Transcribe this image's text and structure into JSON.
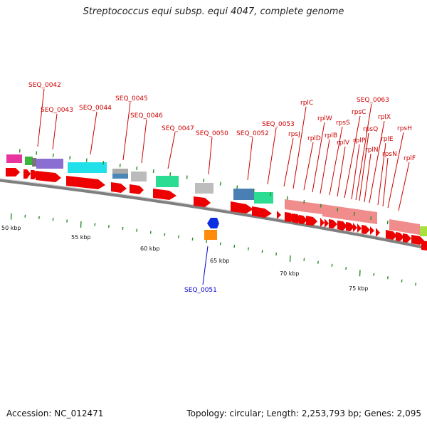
{
  "title": "Streptococcus equi subsp. equi 4047, complete genome",
  "accession": "Accession: NC_012471",
  "summary": "Topology: circular; Length: 2,253,793 bp; Genes: 2,095",
  "kbp_labels": [
    "50 kbp",
    "55 kbp",
    "60 kbp",
    "65 kbp",
    "70 kbp",
    "75 kbp"
  ],
  "gene_labels_forward": [
    "SEQ_0042",
    "SEQ_0043",
    "SEQ_0044",
    "SEQ_0045",
    "SEQ_0046",
    "SEQ_0047",
    "SEQ_0050",
    "SEQ_0052",
    "SEQ_0053",
    "rpsJ",
    "rplC",
    "rplD",
    "rplW",
    "rplB",
    "rpsS",
    "rplV",
    "rpsC",
    "rplP",
    "SEQ_0063",
    "rpsQ",
    "rplN",
    "rplX",
    "rplE",
    "rpsN",
    "rpsH",
    "rplF"
  ],
  "gene_labels_reverse": [
    "SEQ_0051"
  ],
  "colors": {
    "forward_label": "#cc0000",
    "reverse_label": "#0000cc",
    "cds_forward": "#ee0000",
    "ribosomal": "#f08c8c",
    "backbone": "#888888",
    "tick": "#2a8a2a"
  }
}
